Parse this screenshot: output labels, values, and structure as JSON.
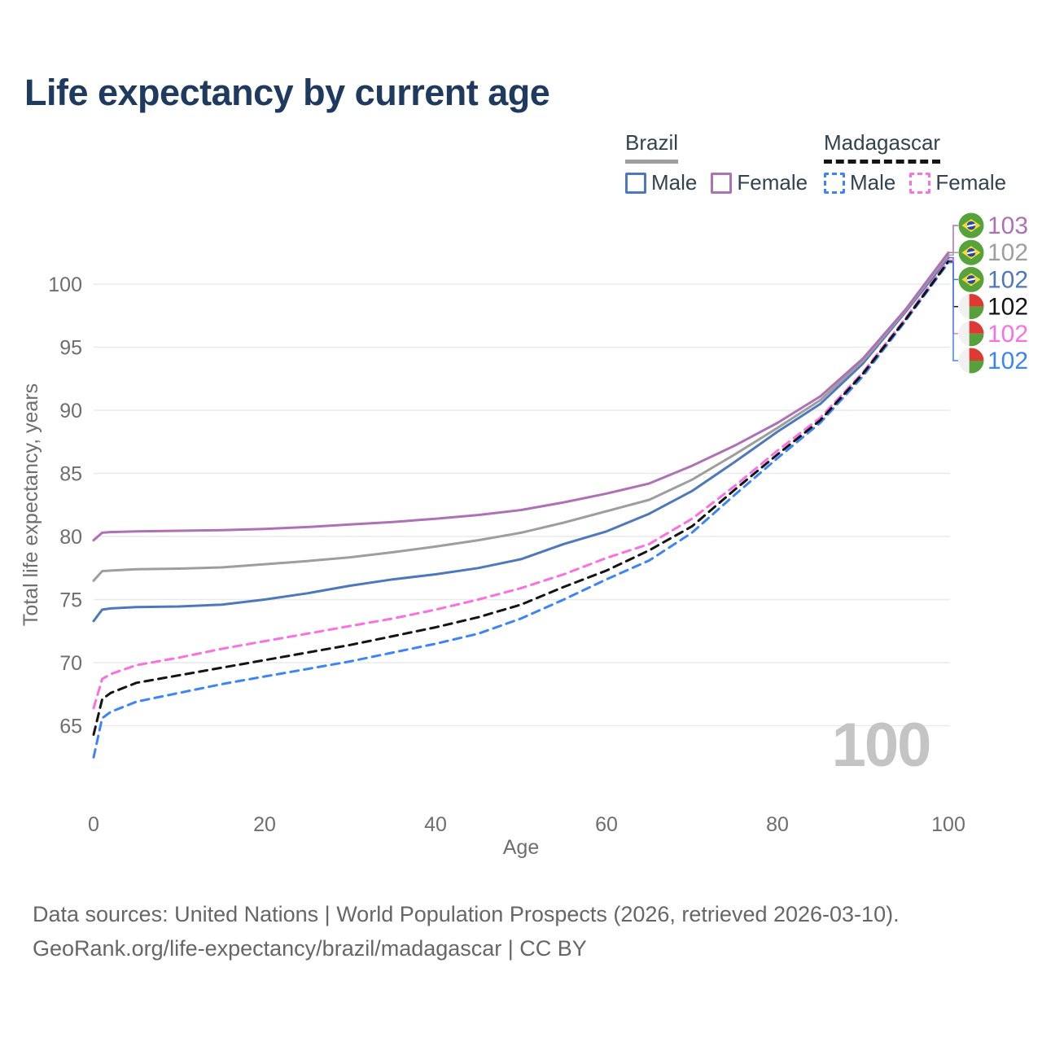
{
  "header": {
    "title": "Life expectancy by current age"
  },
  "legend": {
    "groups": [
      {
        "id": "brazil",
        "label": "Brazil",
        "underline_series": "brazil_all",
        "items": [
          {
            "id": "brazil-male",
            "label": "Male",
            "series": "brazil_male"
          },
          {
            "id": "brazil-female",
            "label": "Female",
            "series": "brazil_female"
          }
        ]
      },
      {
        "id": "madagascar",
        "label": "Madagascar",
        "underline_series": "madagascar_all",
        "items": [
          {
            "id": "madagascar-male",
            "label": "Male",
            "series": "madagascar_male"
          },
          {
            "id": "madagascar-female",
            "label": "Female",
            "series": "madagascar_female"
          }
        ]
      }
    ]
  },
  "chart_data": {
    "type": "line",
    "title": "Life expectancy by current age",
    "xlabel": "Age",
    "ylabel": "Total life expectancy, years",
    "xlim": [
      0,
      100
    ],
    "ylim": [
      62,
      103
    ],
    "x_ticks": [
      0,
      20,
      40,
      60,
      80,
      100
    ],
    "y_ticks": [
      65,
      70,
      75,
      80,
      85,
      90,
      95,
      100
    ],
    "grid": true,
    "legend_position": "top-right",
    "watermark": "100",
    "ages": [
      0,
      1,
      2,
      5,
      10,
      15,
      20,
      25,
      30,
      35,
      40,
      45,
      50,
      55,
      60,
      65,
      70,
      75,
      80,
      85,
      90,
      95,
      100
    ],
    "series": [
      {
        "id": "brazil_male",
        "name": "Brazil Male",
        "color": "#4d79bc",
        "dashed": false,
        "values": [
          73.3,
          74.2,
          74.3,
          74.4,
          74.45,
          74.6,
          75.0,
          75.5,
          76.1,
          76.6,
          77.0,
          77.5,
          78.2,
          79.4,
          80.4,
          81.8,
          83.6,
          85.9,
          88.3,
          90.5,
          93.7,
          97.8,
          102.1
        ]
      },
      {
        "id": "brazil_all",
        "name": "Brazil",
        "color": "#9e9e9e",
        "dashed": false,
        "values": [
          76.5,
          77.25,
          77.3,
          77.4,
          77.45,
          77.55,
          77.8,
          78.05,
          78.35,
          78.75,
          79.2,
          79.7,
          80.3,
          81.1,
          82.0,
          82.9,
          84.5,
          86.5,
          88.6,
          90.8,
          93.9,
          97.9,
          102.3
        ]
      },
      {
        "id": "brazil_female",
        "name": "Brazil Female",
        "color": "#af71b5",
        "dashed": false,
        "values": [
          79.7,
          80.3,
          80.35,
          80.4,
          80.45,
          80.5,
          80.6,
          80.75,
          80.95,
          81.15,
          81.4,
          81.7,
          82.1,
          82.7,
          83.4,
          84.2,
          85.6,
          87.2,
          89.0,
          91.1,
          94.1,
          98.0,
          102.5
        ]
      },
      {
        "id": "madagascar_male",
        "name": "Madagascar Male",
        "color": "#3d85f6",
        "dashed": true,
        "values": [
          62.5,
          65.6,
          66.1,
          66.9,
          67.6,
          68.3,
          68.9,
          69.5,
          70.1,
          70.8,
          71.5,
          72.3,
          73.5,
          75.0,
          76.6,
          78.1,
          80.3,
          83.3,
          86.2,
          89.0,
          92.7,
          97.1,
          101.7
        ]
      },
      {
        "id": "madagascar_female",
        "name": "Madagascar Female",
        "color": "#fa70e0",
        "dashed": true,
        "values": [
          66.4,
          68.7,
          69.1,
          69.8,
          70.4,
          71.1,
          71.7,
          72.3,
          72.9,
          73.5,
          74.2,
          75.0,
          75.9,
          77.0,
          78.3,
          79.4,
          81.4,
          84.0,
          86.8,
          89.4,
          93.0,
          97.3,
          101.9
        ]
      },
      {
        "id": "madagascar_all",
        "name": "Madagascar",
        "color": "#141414",
        "dashed": true,
        "values": [
          64.3,
          67.1,
          67.6,
          68.4,
          69.0,
          69.6,
          70.2,
          70.8,
          71.4,
          72.1,
          72.8,
          73.6,
          74.6,
          76.0,
          77.3,
          78.9,
          80.8,
          83.7,
          86.5,
          89.2,
          92.9,
          97.2,
          101.8
        ]
      }
    ],
    "end_labels": [
      {
        "text": "103",
        "flag": "brazil",
        "color": "#af71b5",
        "series": "brazil_female"
      },
      {
        "text": "102",
        "flag": "brazil",
        "color": "#9e9e9e",
        "series": "brazil_all"
      },
      {
        "text": "102",
        "flag": "brazil",
        "color": "#4d79bc",
        "series": "brazil_male"
      },
      {
        "text": "102",
        "flag": "madagascar",
        "color": "#141414",
        "series": "madagascar_all"
      },
      {
        "text": "102",
        "flag": "madagascar",
        "color": "#fa70e0",
        "series": "madagascar_female"
      },
      {
        "text": "102",
        "flag": "madagascar",
        "color": "#3d85f6",
        "series": "madagascar_male"
      }
    ]
  },
  "footer": {
    "line1": "Data sources: United Nations | World Population Prospects (2026, retrieved 2026-03-10).",
    "line2": "GeoRank.org/life-expectancy/brazil/madagascar | CC BY"
  }
}
